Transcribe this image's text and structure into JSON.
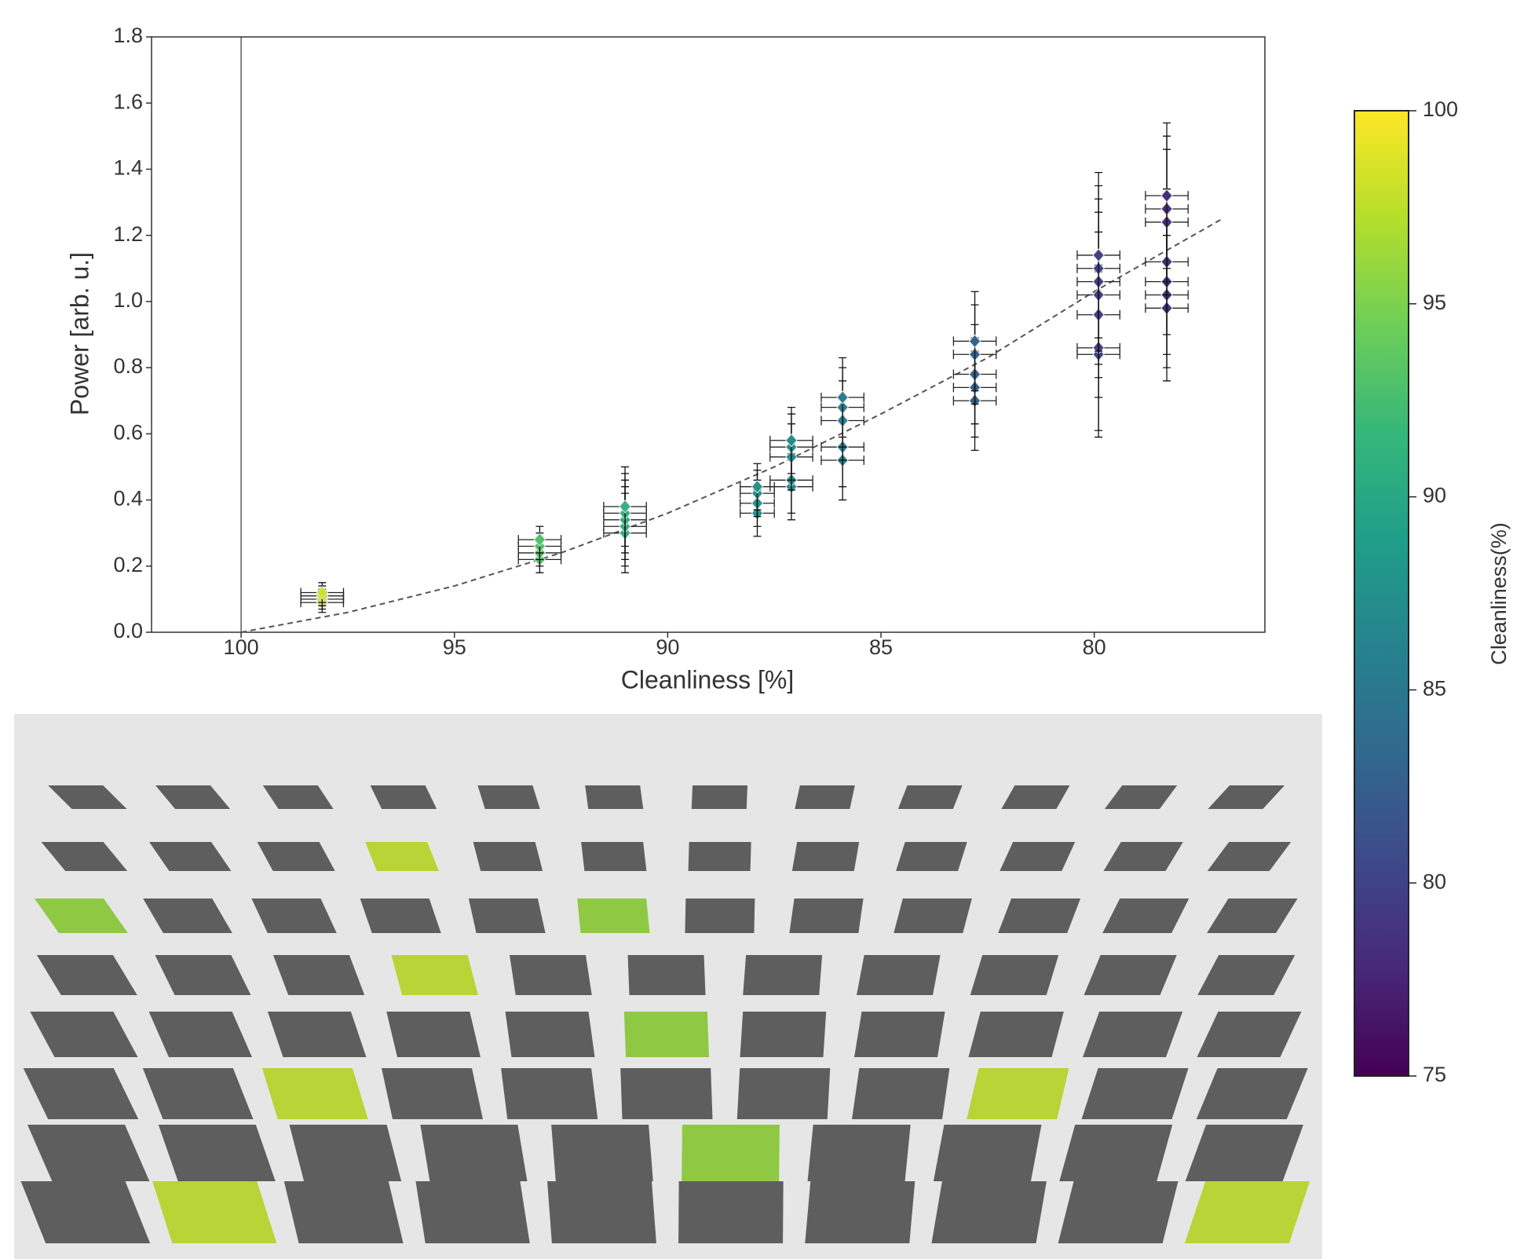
{
  "chart_data": {
    "type": "errorbar-scatter",
    "x_label": "Cleanliness  [%]",
    "y_label": "Power [arb. u.]",
    "xlim": [
      102.1,
      76.0
    ],
    "xticks": [
      100,
      95,
      90,
      85,
      80
    ],
    "ylim": [
      0,
      1.8
    ],
    "yticks": [
      {
        "value": 0,
        "label": "0.0"
      },
      0.2,
      0.4,
      0.6,
      0.8,
      {
        "value": 1,
        "label": "1.0"
      },
      1.2,
      1.4,
      1.6,
      1.8
    ],
    "reference_x": 100,
    "colormap": "viridis",
    "x": [
      98.1,
      98.1,
      98.1,
      98.1,
      93.0,
      93.0,
      93.0,
      93.0,
      91.0,
      91.0,
      91.0,
      91.0,
      91.0,
      87.9,
      87.9,
      87.9,
      87.9,
      87.1,
      87.1,
      87.1,
      87.1,
      87.1,
      85.9,
      85.9,
      85.9,
      85.9,
      85.9,
      82.8,
      82.8,
      82.8,
      82.8,
      82.8,
      79.9,
      79.9,
      79.9,
      79.9,
      79.9,
      79.9,
      79.9,
      78.3,
      78.3,
      78.3,
      78.3,
      78.3,
      78.3,
      78.3
    ],
    "values": [
      0.09,
      0.1,
      0.11,
      0.12,
      0.22,
      0.24,
      0.26,
      0.28,
      0.3,
      0.32,
      0.34,
      0.36,
      0.38,
      0.36,
      0.39,
      0.42,
      0.44,
      0.44,
      0.46,
      0.53,
      0.56,
      0.58,
      0.52,
      0.56,
      0.64,
      0.68,
      0.71,
      0.7,
      0.74,
      0.78,
      0.84,
      0.88,
      0.84,
      0.86,
      0.96,
      1.02,
      1.06,
      1.1,
      1.14,
      0.98,
      1.02,
      1.06,
      1.12,
      1.24,
      1.28,
      1.32
    ],
    "xerr": [
      0.5,
      0.5,
      0.5,
      0.5,
      0.5,
      0.5,
      0.5,
      0.5,
      0.5,
      0.5,
      0.5,
      0.5,
      0.5,
      0.4,
      0.4,
      0.4,
      0.4,
      0.5,
      0.5,
      0.5,
      0.5,
      0.5,
      0.5,
      0.5,
      0.5,
      0.5,
      0.5,
      0.5,
      0.5,
      0.5,
      0.5,
      0.5,
      0.5,
      0.5,
      0.5,
      0.5,
      0.5,
      0.5,
      0.5,
      0.5,
      0.5,
      0.5,
      0.5,
      0.5,
      0.5,
      0.5
    ],
    "yerr": [
      0.03,
      0.03,
      0.03,
      0.03,
      0.04,
      0.04,
      0.04,
      0.04,
      0.12,
      0.12,
      0.12,
      0.12,
      0.12,
      0.07,
      0.07,
      0.07,
      0.07,
      0.1,
      0.1,
      0.1,
      0.1,
      0.1,
      0.12,
      0.12,
      0.12,
      0.12,
      0.12,
      0.15,
      0.15,
      0.15,
      0.15,
      0.15,
      0.25,
      0.25,
      0.25,
      0.25,
      0.25,
      0.25,
      0.25,
      0.22,
      0.22,
      0.22,
      0.22,
      0.22,
      0.22,
      0.22
    ],
    "fit": {
      "color": "#555555",
      "x": [
        100,
        97.5,
        95,
        92.5,
        90,
        87.5,
        85,
        82.5,
        80,
        77
      ],
      "values": [
        0,
        0.06,
        0.14,
        0.24,
        0.36,
        0.5,
        0.66,
        0.83,
        1.03,
        1.25
      ]
    },
    "colorbar": {
      "label": "Cleanliness(%)",
      "lim": [
        75,
        100
      ],
      "ticks": [
        75,
        80,
        85,
        90,
        95,
        100
      ]
    }
  }
}
